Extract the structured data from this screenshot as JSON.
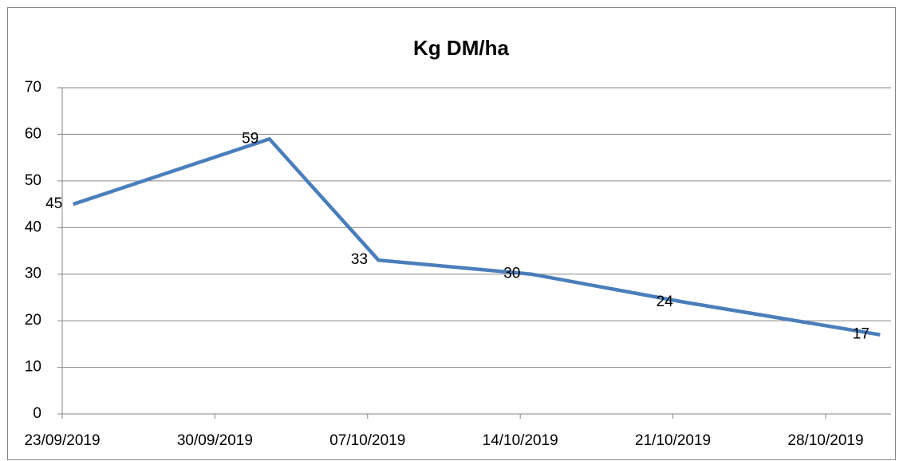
{
  "chart_data": {
    "type": "line",
    "title": "Kg DM/ha",
    "x": [
      "23/09/2019",
      "02/10/2019",
      "07/10/2019",
      "14/10/2019",
      "21/10/2019",
      "30/10/2019"
    ],
    "series": [
      {
        "name": "Kg DM/ha",
        "color": "#4a7ebb",
        "values": [
          45,
          59,
          33,
          30,
          24,
          17
        ]
      }
    ],
    "xlim": [
      "23/09/2019",
      "31/10/2019"
    ],
    "xticks": [
      "23/09/2019",
      "30/09/2019",
      "07/10/2019",
      "14/10/2019",
      "21/10/2019",
      "28/10/2019"
    ],
    "ylim": [
      0,
      70
    ],
    "yticks": [
      0,
      10,
      20,
      30,
      40,
      50,
      60,
      70
    ],
    "grid": true
  }
}
